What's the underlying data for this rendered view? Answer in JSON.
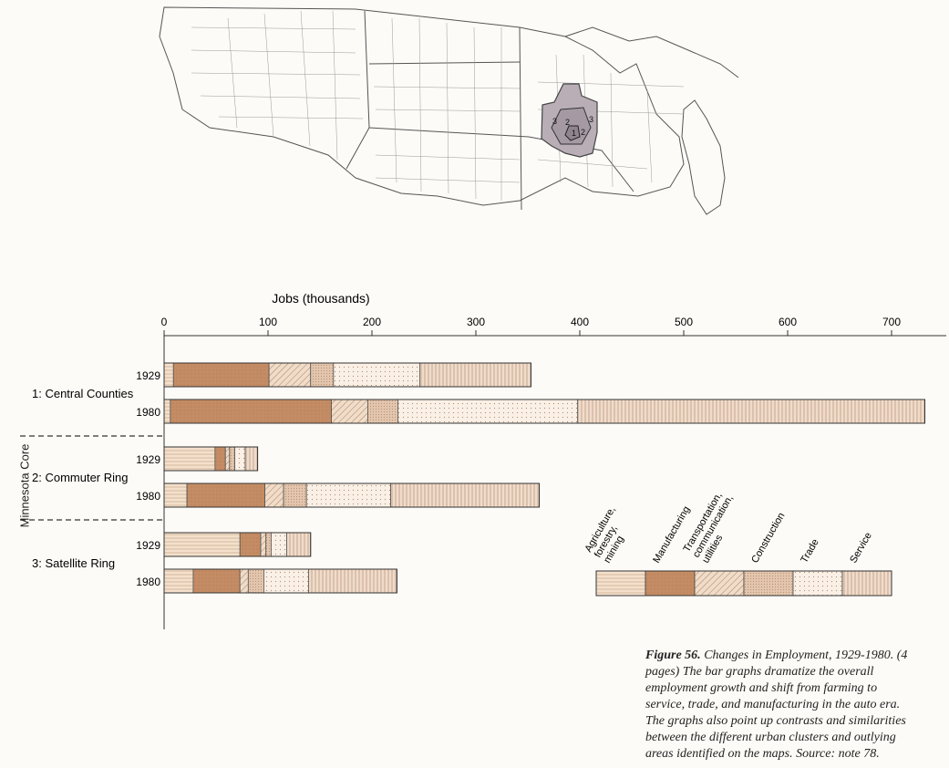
{
  "figure": {
    "caption_lead": "Figure 56.",
    "caption_title": "Changes in Employment, 1929-1980.",
    "caption_body": "(4 pages) The bar graphs dramatize the overall employment growth and shift from farming to service, trade, and manufacturing in the auto era. The graphs also point up contrasts and similarities between the different urban clusters and outlying areas identified on the maps. Source: note 78.",
    "map_ring_labels": [
      "3",
      "2",
      "1",
      "2",
      "3"
    ]
  },
  "chart_data": {
    "type": "bar",
    "orientation": "horizontal",
    "stacked": true,
    "xlabel": "Jobs (thousands)",
    "xlim": [
      0,
      750
    ],
    "ticks": [
      0,
      100,
      200,
      300,
      400,
      500,
      600,
      700
    ],
    "group_axis_label": "Minnesota Core",
    "categories_legend": [
      {
        "name": "Agriculture, forestry, mining",
        "key": "agri",
        "color": "#f1dcc6"
      },
      {
        "name": "Manufacturing",
        "key": "mfg",
        "color": "#c68e66"
      },
      {
        "name": "Transportation, communication, utilities",
        "key": "tcu",
        "color": "#e9cdb3"
      },
      {
        "name": "Construction",
        "key": "cons",
        "color": "#ddbfa5"
      },
      {
        "name": "Trade",
        "key": "trade",
        "color": "#f7ebdf"
      },
      {
        "name": "Service",
        "key": "serv",
        "color": "#e6cbb5"
      }
    ],
    "groups": [
      {
        "name": "1: Central Counties",
        "bars": [
          {
            "year": "1929",
            "values": [
              9,
              92,
              40,
              22,
              83,
              107
            ]
          },
          {
            "year": "1980",
            "values": [
              6,
              155,
              35,
              29,
              173,
              334
            ]
          }
        ]
      },
      {
        "name": "2: Commuter Ring",
        "bars": [
          {
            "year": "1929",
            "values": [
              49,
              10,
              4,
              5,
              10,
              12
            ]
          },
          {
            "year": "1980",
            "values": [
              22,
              75,
              18,
              22,
              81,
              143
            ]
          }
        ]
      },
      {
        "name": "3: Satellite Ring",
        "bars": [
          {
            "year": "1929",
            "values": [
              73,
              20,
              5,
              5,
              15,
              23
            ]
          },
          {
            "year": "1980",
            "values": [
              28,
              45,
              8,
              15,
              43,
              85
            ]
          }
        ]
      }
    ]
  }
}
